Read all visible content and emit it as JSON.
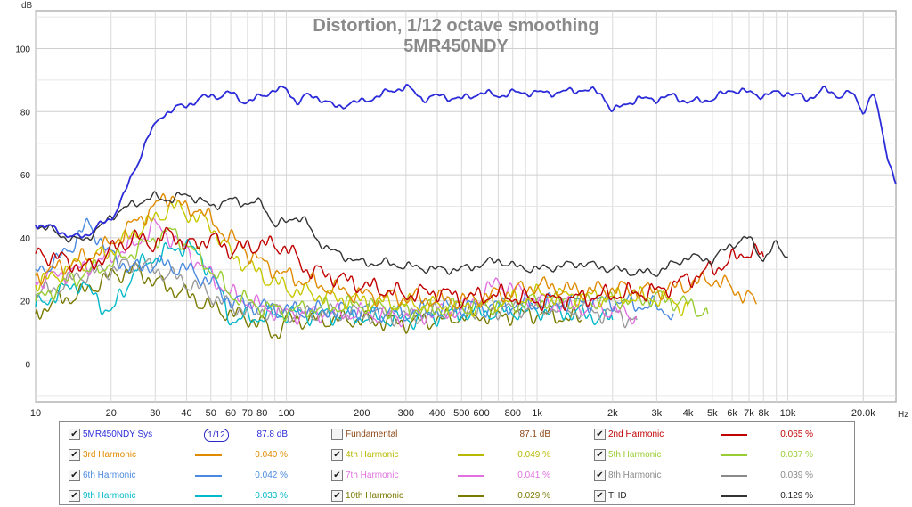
{
  "chart_data": {
    "type": "line",
    "title": "Distortion, 1/12 octave smoothing",
    "subtitle": "5MR450NDY",
    "ylabel": "dB",
    "xlabel": "Hz",
    "x_scale": "log",
    "xlim": [
      10,
      27000
    ],
    "ylim": [
      -12,
      112
    ],
    "grid": true,
    "y_ticks": [
      0,
      20,
      40,
      60,
      80,
      100
    ],
    "y_tick_labels": [
      "0",
      "20",
      "40",
      "60",
      "80",
      "100"
    ],
    "x_ticks": [
      10,
      20,
      30,
      40,
      50,
      60,
      70,
      80,
      100,
      200,
      300,
      400,
      500,
      600,
      800,
      1000,
      2000,
      3000,
      4000,
      5000,
      6000,
      7000,
      8000,
      10000,
      20000
    ],
    "x_tick_labels": [
      "10",
      "20",
      "30",
      "40",
      "50",
      "60",
      "70",
      "80",
      "100",
      "200",
      "300",
      "400",
      "500",
      "600",
      "800",
      "1k",
      "2k",
      "3k",
      "4k",
      "5k",
      "6k",
      "7k",
      "8k",
      "10k",
      "20.0k"
    ],
    "series": [
      {
        "name": "5MR450NDY Sys",
        "color": "#2b2bd9",
        "x": [
          10,
          12,
          14,
          16,
          18,
          20,
          22,
          25,
          28,
          32,
          36,
          40,
          45,
          50,
          55,
          60,
          65,
          70,
          80,
          90,
          100,
          110,
          120,
          140,
          160,
          180,
          200,
          250,
          300,
          350,
          400,
          500,
          600,
          700,
          800,
          1000,
          1200,
          1500,
          1800,
          2000,
          2200,
          2500,
          3000,
          3500,
          4000,
          5000,
          6000,
          7000,
          8000,
          9000,
          10000,
          12000,
          14000,
          16000,
          18000,
          20000,
          22000,
          25000,
          27000
        ],
        "y": [
          44,
          43,
          40,
          41,
          44,
          46,
          52,
          62,
          72,
          79,
          81,
          82,
          84,
          85,
          85,
          86,
          84,
          83,
          85,
          87,
          87,
          83,
          85,
          84,
          81,
          83,
          83,
          86,
          88,
          84,
          85,
          84,
          86,
          85,
          86,
          86,
          86,
          87,
          86,
          80,
          82,
          84,
          84,
          85,
          83,
          84,
          87,
          86,
          85,
          86,
          86,
          84,
          87,
          85,
          86,
          80,
          86,
          66,
          57
        ]
      },
      {
        "name": "Fundamental",
        "color": "#8b4513",
        "x": [],
        "y": []
      },
      {
        "name": "2nd Harmonic",
        "color": "#c00000",
        "x": [
          10,
          12,
          14,
          16,
          20,
          25,
          30,
          35,
          40,
          50,
          60,
          80,
          100,
          120,
          150,
          200,
          300,
          400,
          500,
          700,
          1000,
          1500,
          2000,
          3000,
          4000,
          5000,
          6000,
          7000,
          8000
        ],
        "y": [
          35,
          34,
          32,
          30,
          36,
          40,
          38,
          42,
          37,
          40,
          36,
          38,
          37,
          30,
          28,
          25,
          22,
          23,
          21,
          22,
          20,
          21,
          22,
          23,
          27,
          30,
          33,
          36,
          34
        ]
      },
      {
        "name": "3rd Harmonic",
        "color": "#e08a00",
        "x": [
          10,
          12,
          15,
          20,
          25,
          30,
          35,
          40,
          45,
          50,
          60,
          80,
          100,
          150,
          200,
          300,
          500,
          800,
          1000,
          1500,
          2000,
          3000,
          4000,
          5000,
          6000,
          7000,
          7500
        ],
        "y": [
          28,
          30,
          33,
          38,
          45,
          50,
          54,
          48,
          50,
          45,
          40,
          32,
          28,
          24,
          22,
          21,
          20,
          23,
          25,
          23,
          24,
          23,
          25,
          27,
          24,
          21,
          19
        ]
      },
      {
        "name": "4th Harmonic",
        "color": "#c8c800",
        "x": [
          10,
          12,
          15,
          20,
          25,
          30,
          35,
          40,
          50,
          60,
          80,
          100,
          150,
          200,
          300,
          500,
          800,
          1000,
          2000,
          3000,
          4000
        ],
        "y": [
          25,
          28,
          32,
          36,
          42,
          46,
          50,
          48,
          44,
          35,
          28,
          24,
          21,
          20,
          19,
          18,
          20,
          22,
          21,
          21,
          18
        ]
      },
      {
        "name": "5th Harmonic",
        "color": "#9acd32",
        "x": [
          10,
          12,
          15,
          20,
          25,
          30,
          35,
          40,
          50,
          60,
          80,
          100,
          150,
          200,
          300,
          500,
          800,
          1000,
          2000,
          3000,
          4000,
          4800
        ],
        "y": [
          20,
          24,
          28,
          32,
          36,
          40,
          42,
          38,
          30,
          22,
          18,
          17,
          18,
          19,
          17,
          18,
          19,
          20,
          20,
          21,
          19,
          16
        ]
      },
      {
        "name": "6th Harmonic",
        "color": "#4a8ae0",
        "x": [
          10,
          12,
          14,
          16,
          18,
          20,
          25,
          30,
          40,
          50,
          60,
          80,
          100,
          200,
          300,
          500,
          1000,
          2000,
          3000,
          3500
        ],
        "y": [
          30,
          32,
          38,
          44,
          40,
          34,
          30,
          32,
          30,
          26,
          20,
          18,
          17,
          17,
          16,
          18,
          19,
          20,
          18,
          16
        ]
      },
      {
        "name": "7th Harmonic",
        "color": "#e070e0",
        "x": [
          10,
          12,
          15,
          20,
          25,
          30,
          35,
          40,
          50,
          60,
          80,
          100,
          200,
          300,
          500,
          700,
          1000,
          1500,
          2000,
          2500
        ],
        "y": [
          26,
          28,
          30,
          34,
          38,
          44,
          40,
          36,
          28,
          22,
          18,
          16,
          16,
          15,
          17,
          26,
          20,
          18,
          17,
          15
        ]
      },
      {
        "name": "8th Harmonic",
        "color": "#9a9a9a",
        "x": [
          10,
          12,
          15,
          20,
          25,
          30,
          40,
          50,
          60,
          80,
          100,
          200,
          300,
          500,
          1000,
          2000,
          2500
        ],
        "y": [
          22,
          24,
          28,
          30,
          32,
          30,
          26,
          22,
          18,
          17,
          16,
          16,
          15,
          17,
          18,
          16,
          14
        ]
      },
      {
        "name": "9th Harmonic",
        "color": "#00b8c8",
        "x": [
          10,
          12,
          15,
          20,
          25,
          30,
          40,
          50,
          60,
          80,
          100,
          200,
          300,
          500,
          1000,
          1500,
          2000
        ],
        "y": [
          18,
          22,
          26,
          16,
          30,
          34,
          38,
          30,
          14,
          15,
          16,
          15,
          14,
          16,
          17,
          16,
          14
        ]
      },
      {
        "name": "10th Harmonic",
        "color": "#7a7a00",
        "x": [
          10,
          12,
          15,
          20,
          25,
          30,
          40,
          50,
          60,
          80,
          90,
          100,
          200,
          300,
          500,
          1000,
          1500
        ],
        "y": [
          16,
          20,
          22,
          28,
          30,
          26,
          22,
          18,
          16,
          13,
          9,
          14,
          14,
          13,
          15,
          16,
          14
        ]
      },
      {
        "name": "THD",
        "color": "#333333",
        "x": [
          10,
          12,
          14,
          16,
          18,
          20,
          25,
          30,
          35,
          40,
          50,
          60,
          70,
          80,
          90,
          100,
          110,
          120,
          130,
          150,
          200,
          250,
          300,
          400,
          500,
          700,
          800,
          1000,
          1500,
          2000,
          2500,
          3000,
          4000,
          5000,
          6000,
          7000,
          8000,
          9000,
          10000
        ],
        "y": [
          44,
          42,
          39,
          40,
          43,
          47,
          51,
          53,
          52,
          54,
          50,
          52,
          51,
          51,
          44,
          45,
          47,
          45,
          40,
          36,
          32,
          32,
          31,
          30,
          30,
          33,
          31,
          30,
          32,
          30,
          29,
          29,
          34,
          33,
          38,
          40,
          33,
          38,
          34
        ]
      }
    ]
  },
  "legend": {
    "items": [
      {
        "name": "5MR450NDY Sys",
        "value": "87.8 dB",
        "checked": true,
        "color": "#2b2bd9",
        "show_line": false,
        "smoothing": "1/12"
      },
      {
        "name": "Fundamental",
        "value": "87.1 dB",
        "checked": false,
        "color": "#8b4513",
        "show_line": false
      },
      {
        "name": "2nd Harmonic",
        "value": "0.065 %",
        "checked": true,
        "color": "#c00000",
        "show_line": true
      },
      {
        "name": "3rd Harmonic",
        "value": "0.040 %",
        "checked": true,
        "color": "#e08a00",
        "show_line": true
      },
      {
        "name": "4th Harmonic",
        "value": "0.049 %",
        "checked": true,
        "color": "#b8b800",
        "show_line": true
      },
      {
        "name": "5th Harmonic",
        "value": "0.037 %",
        "checked": true,
        "color": "#9acd32",
        "show_line": true
      },
      {
        "name": "6th Harmonic",
        "value": "0.042 %",
        "checked": true,
        "color": "#4a8ae0",
        "show_line": true
      },
      {
        "name": "7th Harmonic",
        "value": "0.041 %",
        "checked": true,
        "color": "#e070e0",
        "show_line": true
      },
      {
        "name": "8th Harmonic",
        "value": "0.039 %",
        "checked": true,
        "color": "#8a8a8a",
        "show_line": true
      },
      {
        "name": "9th Harmonic",
        "value": "0.033 %",
        "checked": true,
        "color": "#00b8c8",
        "show_line": true
      },
      {
        "name": "10th Harmonic",
        "value": "0.029 %",
        "checked": true,
        "color": "#7a7a00",
        "show_line": true
      },
      {
        "name": "THD",
        "value": "0.129 %",
        "checked": true,
        "color": "#333333",
        "show_line": true
      }
    ]
  }
}
